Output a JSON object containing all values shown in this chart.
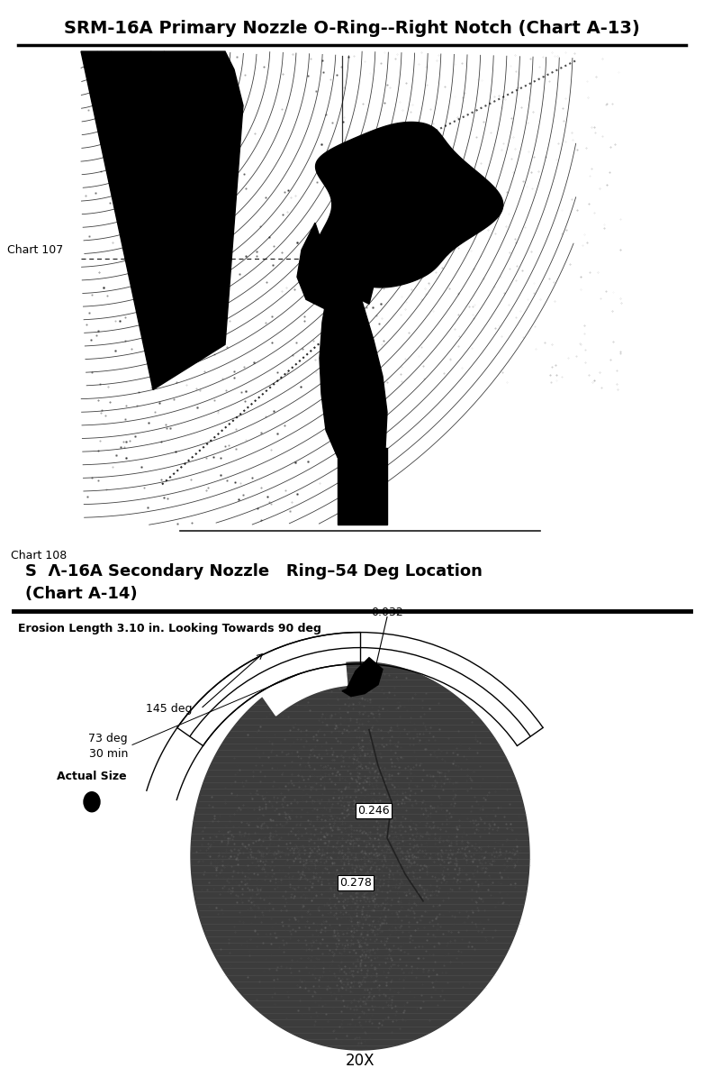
{
  "chart107_title": "SRM-16A Primary Nozzle O-Ring--Right Notch (Chart A-13)",
  "chart107_label": "Chart 107",
  "chart108_label": "Chart 108",
  "chart108_title_line1": "S  Λ-16A Secondary Nozzle   Ring–54 Deg Location",
  "chart108_title_line2": "(Chart A-14)",
  "chart108_subtitle": "Erosion Length 3.10 in. Looking Towards 90 deg",
  "label_145deg": "145 deg",
  "label_73deg": "73 deg",
  "label_30min": "30 min",
  "label_0032": "0.032",
  "label_0246": "0.246",
  "label_0278": "0.278",
  "label_actual_size": "Actual Size",
  "label_20x": "20X",
  "bg_color": "#ffffff",
  "text_color": "#000000",
  "title_fontsize": 14,
  "subtitle_fontsize": 10,
  "chart_label_fontsize": 9
}
